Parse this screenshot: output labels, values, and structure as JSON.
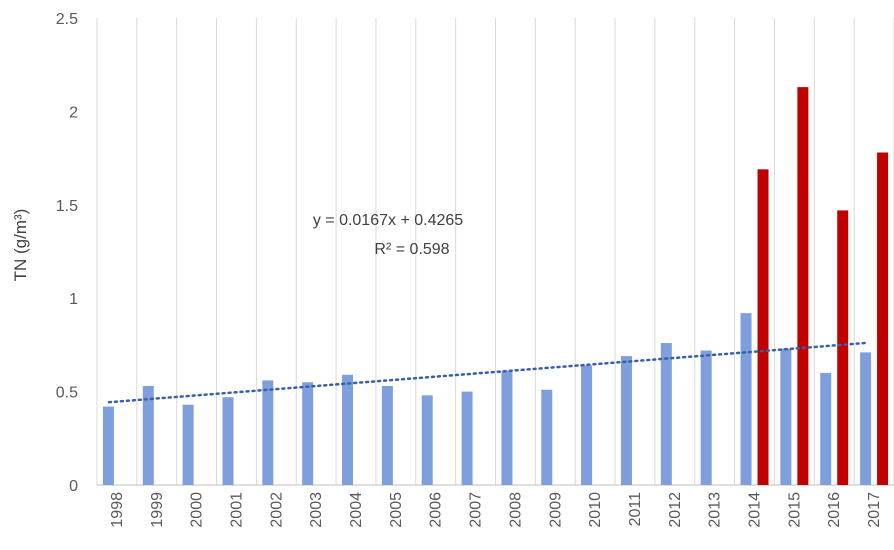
{
  "chart_data": {
    "type": "bar",
    "ylabel": "TN (g/m³)",
    "xlabel": "",
    "title": "",
    "ylim": [
      0,
      2.5
    ],
    "yticks": [
      "0",
      "0.5",
      "1",
      "1.5",
      "2",
      "2.5"
    ],
    "grid": "vertical",
    "categories": [
      "1998",
      "1999",
      "2000",
      "2001",
      "2002",
      "2003",
      "2004",
      "2005",
      "2006",
      "2007",
      "2008",
      "2009",
      "2010",
      "2011",
      "2012",
      "2013",
      "2014",
      "2015",
      "2016",
      "2017"
    ],
    "series": [
      {
        "color": "#7f9fdc",
        "values": [
          0.42,
          0.53,
          0.43,
          0.47,
          0.56,
          0.55,
          0.59,
          0.53,
          0.48,
          0.5,
          0.61,
          0.51,
          0.64,
          0.69,
          0.76,
          0.72,
          0.92,
          0.73,
          0.6,
          0.71
        ]
      },
      {
        "color": "#c00000",
        "values": [
          null,
          null,
          null,
          null,
          null,
          null,
          null,
          null,
          null,
          null,
          null,
          null,
          null,
          null,
          null,
          null,
          1.69,
          2.13,
          1.47,
          1.78
        ]
      }
    ],
    "trendline": {
      "style": "dotted",
      "color": "#3a5fa8",
      "slope": 0.0167,
      "intercept": 0.4265,
      "equation": "y = 0.0167x + 0.4265",
      "r_squared": "R² = 0.598"
    }
  }
}
